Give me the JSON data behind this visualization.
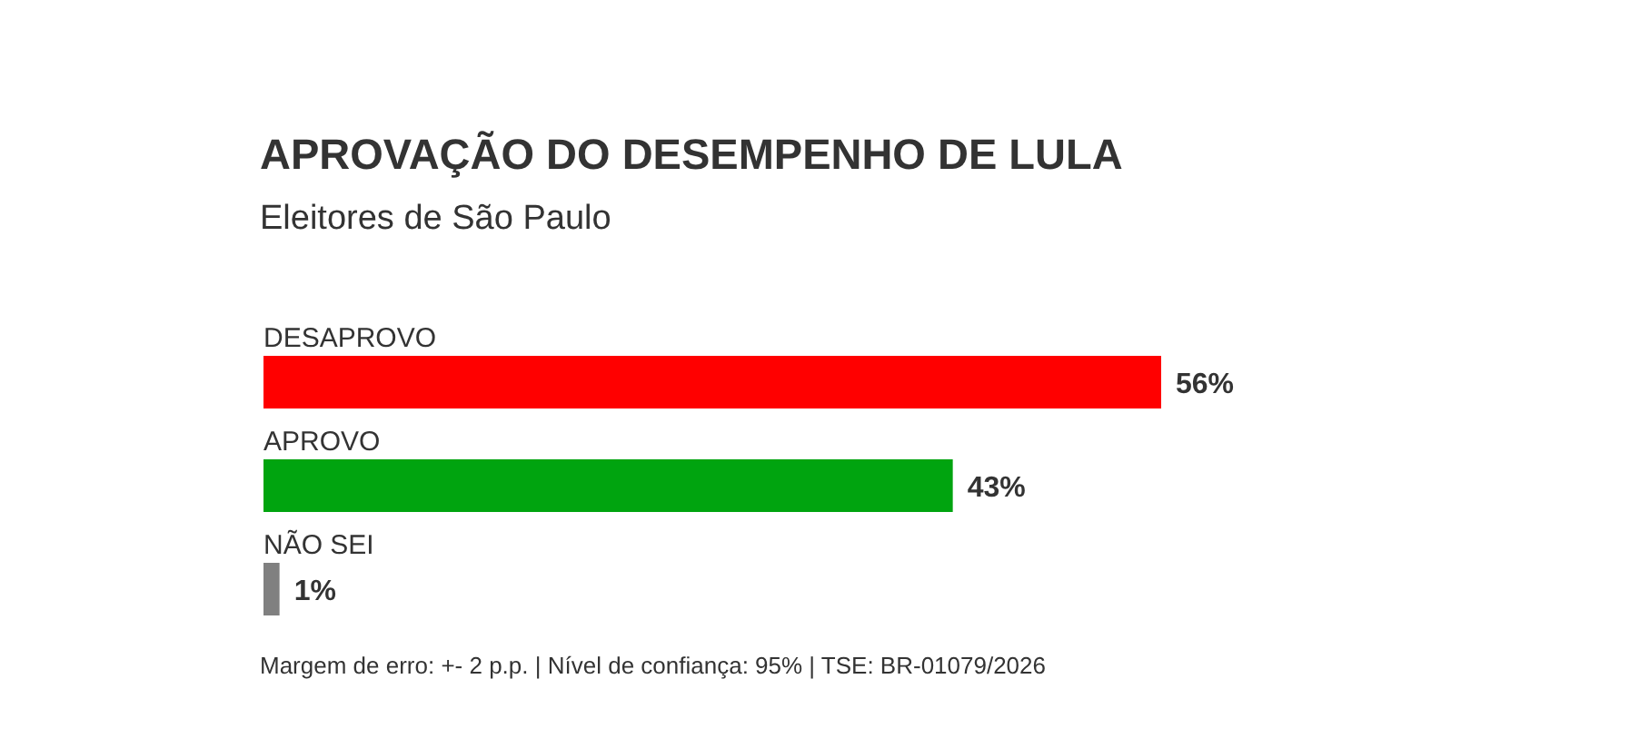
{
  "chart_data": {
    "type": "bar",
    "orientation": "horizontal",
    "title": "APROVAÇÃO DO DESEMPENHO DE LULA",
    "subtitle": "Eleitores de São Paulo",
    "categories": [
      "DESAPROVO",
      "APROVO",
      "NÃO SEI"
    ],
    "values": [
      56,
      43,
      1
    ],
    "colors": [
      "#ff0000",
      "#00a40f",
      "#808080"
    ],
    "value_labels": [
      "56%",
      "43%",
      "1%"
    ],
    "annotations": [
      "Margem de erro: +- 2 p.p. | Nível de confiança: 95% | TSE: BR-01079/2026"
    ]
  }
}
